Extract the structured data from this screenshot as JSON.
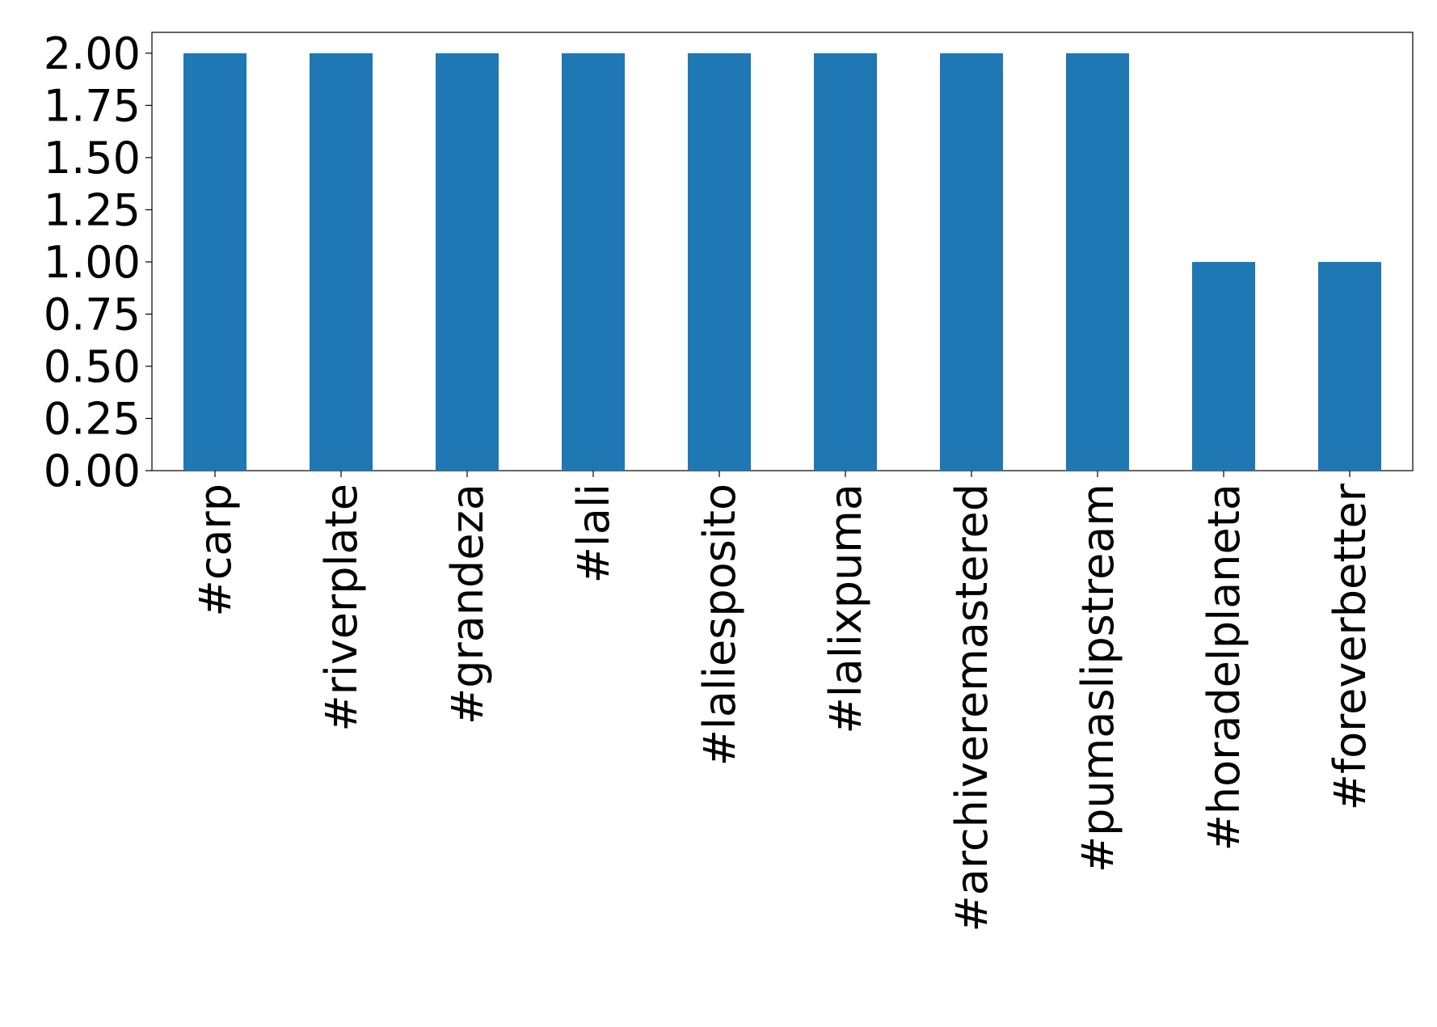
{
  "chart_data": {
    "type": "bar",
    "categories": [
      "#carp",
      "#riverplate",
      "#grandeza",
      "#lali",
      "#laliesposito",
      "#lalixpuma",
      "#archiveremastered",
      "#pumaslipstream",
      "#horadelplaneta",
      "#foreverbetter"
    ],
    "values": [
      2,
      2,
      2,
      2,
      2,
      2,
      2,
      2,
      1,
      1
    ],
    "color": "#1f77b4",
    "ylim": [
      0,
      2.1
    ],
    "yticks": [
      {
        "value": 0,
        "label": "0.00"
      },
      {
        "value": 0.25,
        "label": "0.25"
      },
      {
        "value": 0.5,
        "label": "0.50"
      },
      {
        "value": 0.75,
        "label": "0.75"
      },
      {
        "value": 1,
        "label": "1.00"
      },
      {
        "value": 1.25,
        "label": "1.25"
      },
      {
        "value": 1.5,
        "label": "1.50"
      },
      {
        "value": 1.75,
        "label": "1.75"
      },
      {
        "value": 2,
        "label": "2.00"
      }
    ],
    "grid": false
  }
}
